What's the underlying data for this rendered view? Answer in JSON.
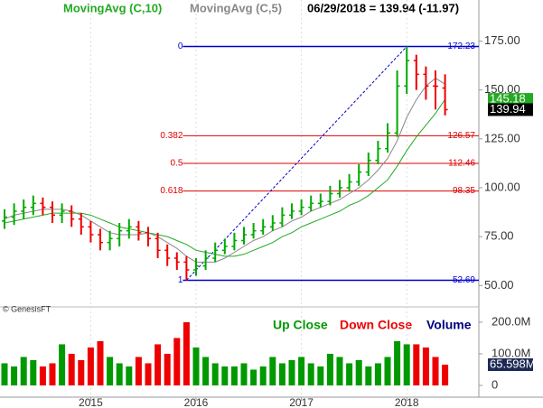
{
  "chart_data": [
    {
      "type": "ohlc",
      "header": "06/29/2018 = 139.94 (-11.97)",
      "watermark": "© GenesisFT",
      "categories": [
        null,
        null,
        null,
        null,
        null,
        null,
        null,
        null,
        null,
        "2015",
        null,
        null,
        null,
        null,
        null,
        null,
        null,
        null,
        null,
        null,
        "2016",
        null,
        null,
        null,
        null,
        null,
        null,
        null,
        null,
        null,
        null,
        "2017",
        null,
        null,
        null,
        null,
        null,
        null,
        null,
        null,
        null,
        null,
        "2018",
        null,
        null,
        null,
        null
      ],
      "open": [
        83,
        85,
        88,
        90,
        92,
        90,
        86,
        88,
        84,
        80,
        76,
        72,
        74,
        78,
        80,
        77,
        74,
        68,
        64,
        62,
        58,
        60,
        64,
        68,
        70,
        73,
        76,
        78,
        80,
        82,
        86,
        88,
        90,
        92,
        93,
        97,
        100,
        103,
        108,
        114,
        120,
        128,
        152,
        165,
        158,
        152,
        151
      ],
      "high": [
        89,
        92,
        94,
        96,
        95,
        93,
        92,
        91,
        87,
        83,
        79,
        78,
        82,
        84,
        83,
        80,
        77,
        71,
        67,
        65,
        64,
        68,
        72,
        74,
        77,
        80,
        82,
        84,
        86,
        90,
        92,
        94,
        96,
        97,
        101,
        104,
        107,
        112,
        118,
        124,
        133,
        160,
        172.23,
        168,
        162,
        160,
        158
      ],
      "low": [
        79,
        81,
        84,
        86,
        86,
        82,
        82,
        80,
        76,
        72,
        68,
        68,
        70,
        74,
        73,
        70,
        64,
        60,
        58,
        52.69,
        55,
        58,
        62,
        66,
        68,
        71,
        74,
        76,
        78,
        80,
        84,
        86,
        88,
        90,
        91,
        95,
        98,
        101,
        106,
        112,
        118,
        126,
        148,
        150,
        145,
        140,
        137
      ],
      "close": [
        85,
        88,
        90,
        92,
        90,
        86,
        88,
        84,
        80,
        76,
        72,
        74,
        78,
        80,
        77,
        74,
        68,
        64,
        62,
        58,
        60,
        64,
        68,
        70,
        73,
        76,
        78,
        80,
        82,
        86,
        88,
        90,
        92,
        93,
        97,
        100,
        103,
        108,
        114,
        120,
        128,
        152,
        165,
        158,
        152,
        151.91,
        139.94
      ],
      "up_color": "#00aa00",
      "down_color": "#ee0000",
      "series": [
        {
          "name": "MovingAvg (C,10)",
          "color": "#22aa22",
          "values": [
            82,
            83,
            84,
            85,
            86,
            87,
            87,
            87,
            87,
            86,
            84,
            82,
            80,
            79,
            78,
            77,
            76,
            75,
            73,
            71,
            68,
            67,
            66,
            65,
            65,
            66,
            68,
            70,
            72,
            75,
            77,
            80,
            82,
            84,
            86,
            88,
            91,
            93,
            96,
            100,
            104,
            111,
            119,
            126,
            132,
            138,
            145.18
          ]
        },
        {
          "name": "MovingAvg (C,5)",
          "color": "#888888",
          "values": [
            84,
            86,
            87,
            88,
            89,
            89,
            89,
            88,
            86,
            83,
            80,
            77,
            76,
            76,
            76,
            77,
            75,
            72,
            69,
            65,
            62,
            62,
            62,
            64,
            67,
            70,
            73,
            75,
            78,
            80,
            83,
            85,
            88,
            90,
            92,
            94,
            97,
            100,
            104,
            109,
            115,
            124,
            136,
            145,
            152,
            156,
            153
          ]
        }
      ],
      "fibonacci": [
        {
          "ratio": 0,
          "price": 172.23,
          "color": "#0000cc"
        },
        {
          "ratio": 0.382,
          "price": 126.57,
          "color": "#dd0000"
        },
        {
          "ratio": 0.5,
          "price": 112.46,
          "color": "#dd0000"
        },
        {
          "ratio": 0.618,
          "price": 98.35,
          "color": "#dd0000"
        },
        {
          "ratio": 1,
          "price": 52.69,
          "color": "#0000cc"
        }
      ],
      "ylim": [
        40,
        196
      ],
      "yticks": [
        {
          "value": 50,
          "label": "50.00"
        },
        {
          "value": 75,
          "label": "75.00"
        },
        {
          "value": 100,
          "label": "100.00"
        },
        {
          "value": 125,
          "label": "125.00"
        },
        {
          "value": 150,
          "label": "150.00"
        },
        {
          "value": 175,
          "label": "175.00"
        }
      ]
    },
    {
      "type": "bar",
      "legend": [
        {
          "name": "Up Close",
          "color": "#009900"
        },
        {
          "name": "Down Close",
          "color": "#ee0000"
        },
        {
          "name": "Volume",
          "color": "#000080"
        }
      ],
      "values": [
        70,
        60,
        90,
        80,
        60,
        70,
        130,
        100,
        80,
        120,
        140,
        90,
        70,
        60,
        90,
        70,
        130,
        100,
        150,
        200,
        120,
        90,
        70,
        60,
        60,
        70,
        50,
        60,
        90,
        70,
        80,
        90,
        70,
        60,
        100,
        90,
        70,
        80,
        60,
        70,
        90,
        140,
        130,
        130,
        120,
        90,
        65.598
      ],
      "value_labels": [
        null,
        null,
        null,
        null,
        null,
        null,
        null,
        null,
        null,
        null,
        null,
        null,
        null,
        null,
        null,
        null,
        null,
        null,
        null,
        null,
        null,
        null,
        null,
        null,
        null,
        null,
        null,
        null,
        null,
        null,
        null,
        null,
        null,
        null,
        null,
        null,
        null,
        null,
        null,
        null,
        null,
        null,
        null,
        null,
        null,
        null,
        "65.598M"
      ],
      "ylim": [
        0,
        234
      ],
      "yticks": [
        0,
        {
          "value": 100,
          "label": "100.0M"
        },
        {
          "value": 200,
          "label": "200.0M"
        }
      ]
    }
  ]
}
